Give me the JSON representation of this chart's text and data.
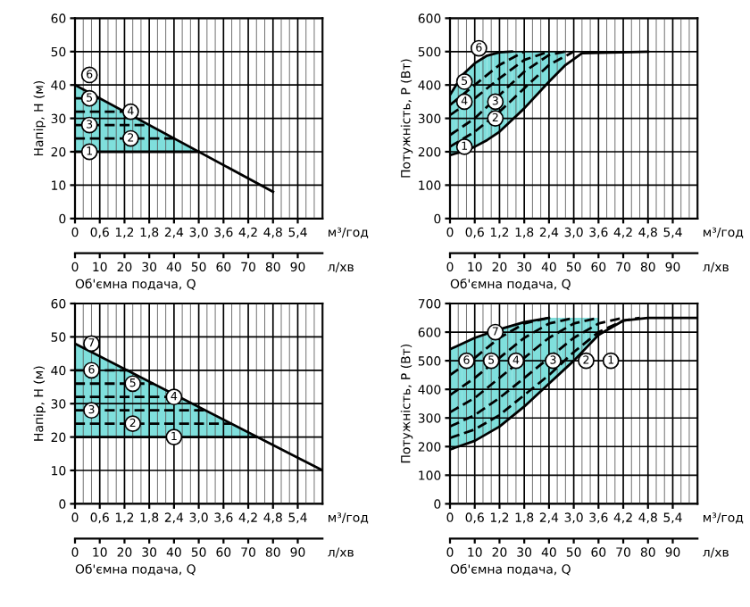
{
  "chart_data": [
    {
      "type": "line",
      "ylabel": "Напір, H (м)",
      "xlabel": "Об'ємна подача, Q",
      "xlim": [
        0,
        6
      ],
      "xticks": [
        0,
        {
          "value": 0.6,
          "label": "0,6"
        },
        {
          "value": 1.2,
          "label": "1,2"
        },
        {
          "value": 1.8,
          "label": "1,8"
        },
        {
          "value": 2.4,
          "label": "2,4"
        },
        {
          "value": 3.0,
          "label": "3,0"
        },
        {
          "value": 3.6,
          "label": "3,6"
        },
        {
          "value": 4.2,
          "label": "4,2"
        },
        {
          "value": 4.8,
          "label": "4,8"
        },
        {
          "value": 5.4,
          "label": "5,4"
        }
      ],
      "ylim": [
        0,
        60
      ],
      "yticks": [
        0,
        10,
        20,
        30,
        40,
        50,
        60
      ],
      "x2lim": [
        0,
        100
      ],
      "x2ticks": [
        0,
        10,
        20,
        30,
        40,
        50,
        60,
        70,
        80,
        90
      ],
      "grid": true,
      "series": [
        {
          "line_style": "solid",
          "color": "#000000",
          "colors": [
            "#7fdfdc",
            "#7fdfdc"
          ],
          "x": [
            0,
            3.0
          ],
          "values": [
            20,
            20
          ],
          "lower": [
            20,
            20
          ],
          "upper": [
            40,
            20
          ]
        },
        {
          "line_style": "dashed",
          "color": "#000000",
          "x": [
            0,
            2.4
          ],
          "values": [
            24,
            24
          ]
        },
        {
          "line_style": "dashed",
          "color": "#000000",
          "x": [
            0,
            1.8
          ],
          "values": [
            28,
            28
          ]
        },
        {
          "line_style": "dashed",
          "color": "#000000",
          "x": [
            0,
            1.2
          ],
          "values": [
            32,
            32
          ]
        },
        {
          "line_style": "dashed",
          "color": "#000000",
          "x": [
            0,
            0.6
          ],
          "values": [
            36,
            36
          ]
        },
        {
          "line_style": "solid",
          "color": "#000000",
          "x": [
            0,
            4.8
          ],
          "values": [
            40,
            8
          ]
        }
      ],
      "annotations": [
        "м³/год",
        "л/хв",
        {
          "text": "1",
          "x": 0.35,
          "y": 20
        },
        {
          "text": "2",
          "x": 1.35,
          "y": 24
        },
        {
          "text": "3",
          "x": 0.35,
          "y": 28
        },
        {
          "text": "4",
          "x": 1.35,
          "y": 32
        },
        {
          "text": "5",
          "x": 0.35,
          "y": 36
        },
        {
          "text": "6",
          "x": 0.35,
          "y": 43
        }
      ]
    },
    {
      "type": "line",
      "ylabel": "Потужність, P (Вт)",
      "xlabel": "Об'ємна подача, Q",
      "xlim": [
        0,
        6
      ],
      "xticks": [
        0,
        {
          "value": 0.6,
          "label": "0,6"
        },
        {
          "value": 1.2,
          "label": "1,2"
        },
        {
          "value": 1.8,
          "label": "1,8"
        },
        {
          "value": 2.4,
          "label": "2,4"
        },
        {
          "value": 3.0,
          "label": "3,0"
        },
        {
          "value": 3.6,
          "label": "3,6"
        },
        {
          "value": 4.2,
          "label": "4,2"
        },
        {
          "value": 4.8,
          "label": "4,8"
        },
        {
          "value": 5.4,
          "label": "5,4"
        }
      ],
      "ylim": [
        0,
        600
      ],
      "yticks": [
        0,
        100,
        200,
        300,
        400,
        500,
        600
      ],
      "x2lim": [
        0,
        100
      ],
      "x2ticks": [
        0,
        10,
        20,
        30,
        40,
        50,
        60,
        70,
        80,
        90
      ],
      "grid": true,
      "series": [
        {
          "line_style": "solid",
          "color": "#000000",
          "colors": [
            "#7fdfdc",
            "#7fdfdc",
            "#7fdfdc",
            "#7fdfdc",
            "#7fdfdc",
            "#7fdfdc",
            "#7fdfdc",
            "#7fdfdc",
            "#7fdfdc",
            null,
            null
          ],
          "x": [
            0,
            0.3,
            0.6,
            0.9,
            1.2,
            1.5,
            1.8,
            2.4,
            2.8,
            3.2,
            4.8
          ],
          "values": [
            190,
            200,
            215,
            235,
            260,
            295,
            330,
            410,
            460,
            495,
            500
          ],
          "lower": [
            190,
            200,
            215,
            235,
            260,
            295,
            330,
            410,
            460,
            null,
            null
          ],
          "upper": [
            370,
            430,
            465,
            488,
            498,
            500,
            500,
            500,
            500,
            null,
            null
          ]
        },
        {
          "line_style": "dashed",
          "color": "#000000",
          "x": [
            0,
            0.6,
            1.2,
            1.8,
            2.4,
            3.0
          ],
          "values": [
            215,
            260,
            320,
            390,
            460,
            500
          ]
        },
        {
          "line_style": "dashed",
          "color": "#000000",
          "x": [
            0,
            0.6,
            1.2,
            1.8,
            2.4,
            2.8
          ],
          "values": [
            250,
            300,
            370,
            440,
            490,
            500
          ]
        },
        {
          "line_style": "dashed",
          "color": "#000000",
          "x": [
            0,
            0.6,
            1.2,
            1.8,
            2.4
          ],
          "values": [
            310,
            360,
            420,
            475,
            500
          ]
        },
        {
          "line_style": "dashed",
          "color": "#000000",
          "x": [
            0,
            0.6,
            1.2,
            1.8
          ],
          "values": [
            340,
            400,
            460,
            500
          ]
        },
        {
          "line_style": "solid",
          "color": "#000000",
          "x": [
            0,
            0.3,
            0.6,
            0.9,
            1.2,
            1.5
          ],
          "values": [
            370,
            430,
            465,
            488,
            498,
            500
          ]
        }
      ],
      "annotations": [
        "м³/год",
        "л/хв",
        {
          "text": "1",
          "x": 0.35,
          "y": 215
        },
        {
          "text": "2",
          "x": 1.1,
          "y": 300
        },
        {
          "text": "3",
          "x": 1.1,
          "y": 350
        },
        {
          "text": "4",
          "x": 0.35,
          "y": 350
        },
        {
          "text": "5",
          "x": 0.35,
          "y": 410
        },
        {
          "text": "6",
          "x": 0.7,
          "y": 510
        }
      ]
    },
    {
      "type": "line",
      "ylabel": "Напір, H (м)",
      "xlabel": "Об'ємна подача, Q",
      "xlim": [
        0,
        6
      ],
      "xticks": [
        0,
        {
          "value": 0.6,
          "label": "0,6"
        },
        {
          "value": 1.2,
          "label": "1,2"
        },
        {
          "value": 1.8,
          "label": "1,8"
        },
        {
          "value": 2.4,
          "label": "2,4"
        },
        {
          "value": 3.0,
          "label": "3,0"
        },
        {
          "value": 3.6,
          "label": "3,6"
        },
        {
          "value": 4.2,
          "label": "4,2"
        },
        {
          "value": 4.8,
          "label": "4,8"
        },
        {
          "value": 5.4,
          "label": "5,4"
        }
      ],
      "ylim": [
        0,
        60
      ],
      "yticks": [
        0,
        10,
        20,
        30,
        40,
        50,
        60
      ],
      "x2lim": [
        0,
        100
      ],
      "x2ticks": [
        0,
        10,
        20,
        30,
        40,
        50,
        60,
        70,
        80,
        90
      ],
      "grid": true,
      "series": [
        {
          "line_style": "solid",
          "color": "#000000",
          "colors": [
            "#7fdfdc",
            "#7fdfdc"
          ],
          "x": [
            0,
            4.4
          ],
          "values": [
            20,
            20
          ],
          "lower": [
            20,
            20
          ],
          "upper": [
            48,
            20
          ]
        },
        {
          "line_style": "dashed",
          "color": "#000000",
          "x": [
            0,
            3.8
          ],
          "values": [
            24,
            24
          ]
        },
        {
          "line_style": "dashed",
          "color": "#000000",
          "x": [
            0,
            3.2
          ],
          "values": [
            28,
            28
          ]
        },
        {
          "line_style": "dashed",
          "color": "#000000",
          "x": [
            0,
            2.5
          ],
          "values": [
            32,
            32
          ]
        },
        {
          "line_style": "dashed",
          "color": "#000000",
          "x": [
            0,
            1.9
          ],
          "values": [
            36,
            36
          ]
        },
        {
          "line_style": "dashed",
          "color": "#000000",
          "x": [
            0,
            1.3
          ],
          "values": [
            40,
            40
          ]
        },
        {
          "line_style": "solid",
          "color": "#000000",
          "x": [
            0,
            6.0
          ],
          "values": [
            48,
            10
          ]
        }
      ],
      "annotations": [
        "м³/год",
        "л/хв",
        {
          "text": "1",
          "x": 2.4,
          "y": 20
        },
        {
          "text": "2",
          "x": 1.4,
          "y": 24
        },
        {
          "text": "3",
          "x": 0.4,
          "y": 28
        },
        {
          "text": "4",
          "x": 2.4,
          "y": 32
        },
        {
          "text": "5",
          "x": 1.4,
          "y": 36
        },
        {
          "text": "6",
          "x": 0.4,
          "y": 40
        },
        {
          "text": "7",
          "x": 0.4,
          "y": 48
        }
      ]
    },
    {
      "type": "line",
      "ylabel": "Потужність, P (Вт)",
      "xlabel": "Об'ємна подача, Q",
      "xlim": [
        0,
        6
      ],
      "xticks": [
        0,
        {
          "value": 0.6,
          "label": "0,6"
        },
        {
          "value": 1.2,
          "label": "1,2"
        },
        {
          "value": 1.8,
          "label": "1,8"
        },
        {
          "value": 2.4,
          "label": "2,4"
        },
        {
          "value": 3.0,
          "label": "3,0"
        },
        {
          "value": 3.6,
          "label": "3,6"
        },
        {
          "value": 4.2,
          "label": "4,2"
        },
        {
          "value": 4.8,
          "label": "4,8"
        },
        {
          "value": 5.4,
          "label": "5,4"
        }
      ],
      "ylim": [
        0,
        700
      ],
      "yticks": [
        0,
        100,
        200,
        300,
        400,
        500,
        600,
        700
      ],
      "x2lim": [
        0,
        100
      ],
      "x2ticks": [
        0,
        10,
        20,
        30,
        40,
        50,
        60,
        70,
        80,
        90
      ],
      "grid": true,
      "series": [
        {
          "line_style": "solid",
          "color": "#000000",
          "colors": [
            "#7fdfdc",
            "#7fdfdc",
            "#7fdfdc",
            "#7fdfdc",
            "#7fdfdc",
            "#7fdfdc",
            "#7fdfdc",
            null,
            null,
            null
          ],
          "x": [
            0,
            0.6,
            1.2,
            1.8,
            2.4,
            3.0,
            3.6,
            4.2,
            4.8,
            6.0
          ],
          "values": [
            190,
            220,
            270,
            340,
            420,
            500,
            590,
            640,
            650,
            650
          ],
          "lower": [
            190,
            220,
            270,
            340,
            420,
            500,
            590,
            null,
            null,
            null
          ],
          "upper": [
            540,
            580,
            610,
            635,
            650,
            650,
            650,
            null,
            null,
            null
          ]
        },
        {
          "line_style": "dashed",
          "color": "#000000",
          "x": [
            0,
            0.6,
            1.2,
            1.8,
            2.4,
            3.0,
            3.6,
            4.2,
            4.6
          ],
          "values": [
            230,
            260,
            310,
            380,
            450,
            530,
            600,
            640,
            650
          ]
        },
        {
          "line_style": "dashed",
          "color": "#000000",
          "x": [
            0,
            0.6,
            1.2,
            1.8,
            2.4,
            3.0,
            3.6,
            4.2
          ],
          "values": [
            270,
            310,
            370,
            440,
            510,
            580,
            630,
            650
          ]
        },
        {
          "line_style": "dashed",
          "color": "#000000",
          "x": [
            0,
            0.6,
            1.2,
            1.8,
            2.4,
            3.0,
            3.6
          ],
          "values": [
            320,
            370,
            440,
            510,
            580,
            630,
            650
          ]
        },
        {
          "line_style": "dashed",
          "color": "#000000",
          "x": [
            0,
            0.6,
            1.2,
            1.8,
            2.4,
            3.0
          ],
          "values": [
            380,
            440,
            510,
            580,
            630,
            650
          ]
        },
        {
          "line_style": "dashed",
          "color": "#000000",
          "x": [
            0,
            0.6,
            1.2,
            1.8,
            2.4
          ],
          "values": [
            450,
            510,
            580,
            630,
            650
          ]
        },
        {
          "line_style": "solid",
          "color": "#000000",
          "x": [
            0,
            0.6,
            1.2,
            1.8,
            2.4
          ],
          "values": [
            540,
            580,
            610,
            635,
            650
          ]
        }
      ],
      "annotations": [
        "м³/год",
        "л/хв",
        {
          "text": "1",
          "x": 3.9,
          "y": 500
        },
        {
          "text": "2",
          "x": 3.3,
          "y": 500
        },
        {
          "text": "3",
          "x": 2.5,
          "y": 500
        },
        {
          "text": "4",
          "x": 1.6,
          "y": 500
        },
        {
          "text": "5",
          "x": 1.0,
          "y": 500
        },
        {
          "text": "6",
          "x": 0.4,
          "y": 500
        },
        {
          "text": "7",
          "x": 1.1,
          "y": 600
        }
      ]
    }
  ]
}
